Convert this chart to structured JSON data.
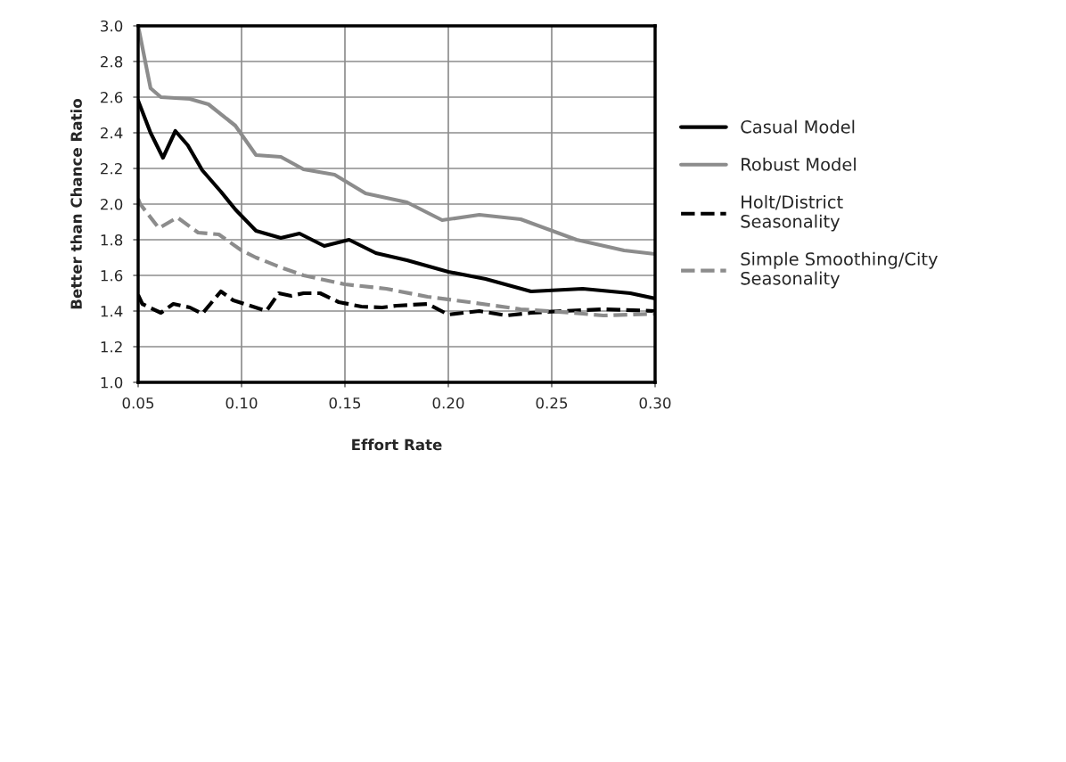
{
  "chart_data": {
    "type": "line",
    "xlabel": "Effort Rate",
    "ylabel": "Better than Chance Ratio",
    "xlim": [
      0.05,
      0.3
    ],
    "xticks": [
      {
        "value": 0.05,
        "label": "0.05"
      },
      {
        "value": 0.1,
        "label": "0.10"
      },
      {
        "value": 0.15,
        "label": "0.15"
      },
      {
        "value": 0.2,
        "label": "0.20"
      },
      {
        "value": 0.25,
        "label": "0.25"
      },
      {
        "value": 0.3,
        "label": "0.30"
      }
    ],
    "ylim": [
      1.0,
      3.0
    ],
    "yticks": [
      {
        "value": 1.0,
        "label": "1.0"
      },
      {
        "value": 1.2,
        "label": "1.2"
      },
      {
        "value": 1.4,
        "label": "1.4"
      },
      {
        "value": 1.6,
        "label": "1.6"
      },
      {
        "value": 1.8,
        "label": "1.8"
      },
      {
        "value": 2.0,
        "label": "2.0"
      },
      {
        "value": 2.2,
        "label": "2.2"
      },
      {
        "value": 2.4,
        "label": "2.4"
      },
      {
        "value": 2.6,
        "label": "2.6"
      },
      {
        "value": 2.8,
        "label": "2.8"
      },
      {
        "value": 3.0,
        "label": "3.0"
      }
    ],
    "grid": true,
    "legend": "right",
    "marker": "none",
    "series": [
      {
        "name": "Casual Model",
        "color": "#000000",
        "line_style": "solid",
        "x": [
          0.05,
          0.056,
          0.062,
          0.068,
          0.074,
          0.081,
          0.09,
          0.097,
          0.107,
          0.119,
          0.128,
          0.14,
          0.152,
          0.165,
          0.18,
          0.2,
          0.218,
          0.24,
          0.265,
          0.288,
          0.3
        ],
        "values": [
          2.58,
          2.4,
          2.26,
          2.41,
          2.33,
          2.19,
          2.07,
          1.97,
          1.85,
          1.81,
          1.835,
          1.765,
          1.8,
          1.725,
          1.685,
          1.62,
          1.58,
          1.51,
          1.525,
          1.5,
          1.47
        ]
      },
      {
        "name": "Robust Model",
        "color": "#8c8c8c",
        "line_style": "solid",
        "x": [
          0.05,
          0.056,
          0.061,
          0.075,
          0.084,
          0.097,
          0.107,
          0.119,
          0.13,
          0.145,
          0.16,
          0.18,
          0.197,
          0.215,
          0.235,
          0.262,
          0.285,
          0.3
        ],
        "values": [
          3.0,
          2.65,
          2.6,
          2.59,
          2.56,
          2.44,
          2.275,
          2.265,
          2.195,
          2.165,
          2.06,
          2.01,
          1.91,
          1.94,
          1.915,
          1.8,
          1.74,
          1.72
        ]
      },
      {
        "name": "Holt/District\nSeasonality",
        "color": "#000000",
        "line_style": "dashed",
        "x": [
          0.05,
          0.052,
          0.061,
          0.067,
          0.075,
          0.081,
          0.09,
          0.096,
          0.112,
          0.118,
          0.124,
          0.13,
          0.138,
          0.147,
          0.158,
          0.168,
          0.175,
          0.19,
          0.2,
          0.215,
          0.228,
          0.24,
          0.255,
          0.275,
          0.3
        ],
        "values": [
          1.49,
          1.44,
          1.39,
          1.44,
          1.42,
          1.385,
          1.51,
          1.46,
          1.4,
          1.5,
          1.485,
          1.5,
          1.5,
          1.45,
          1.425,
          1.42,
          1.43,
          1.44,
          1.38,
          1.4,
          1.375,
          1.39,
          1.4,
          1.41,
          1.4
        ]
      },
      {
        "name": "Simple Smoothing/City\nSeasonality",
        "color": "#8c8c8c",
        "line_style": "dashed",
        "x": [
          0.05,
          0.051,
          0.06,
          0.069,
          0.079,
          0.089,
          0.1,
          0.107,
          0.119,
          0.13,
          0.15,
          0.17,
          0.19,
          0.21,
          0.235,
          0.26,
          0.275,
          0.3
        ],
        "values": [
          2.03,
          2.0,
          1.865,
          1.925,
          1.84,
          1.83,
          1.74,
          1.7,
          1.645,
          1.6,
          1.55,
          1.525,
          1.48,
          1.45,
          1.41,
          1.39,
          1.375,
          1.385
        ]
      }
    ]
  }
}
